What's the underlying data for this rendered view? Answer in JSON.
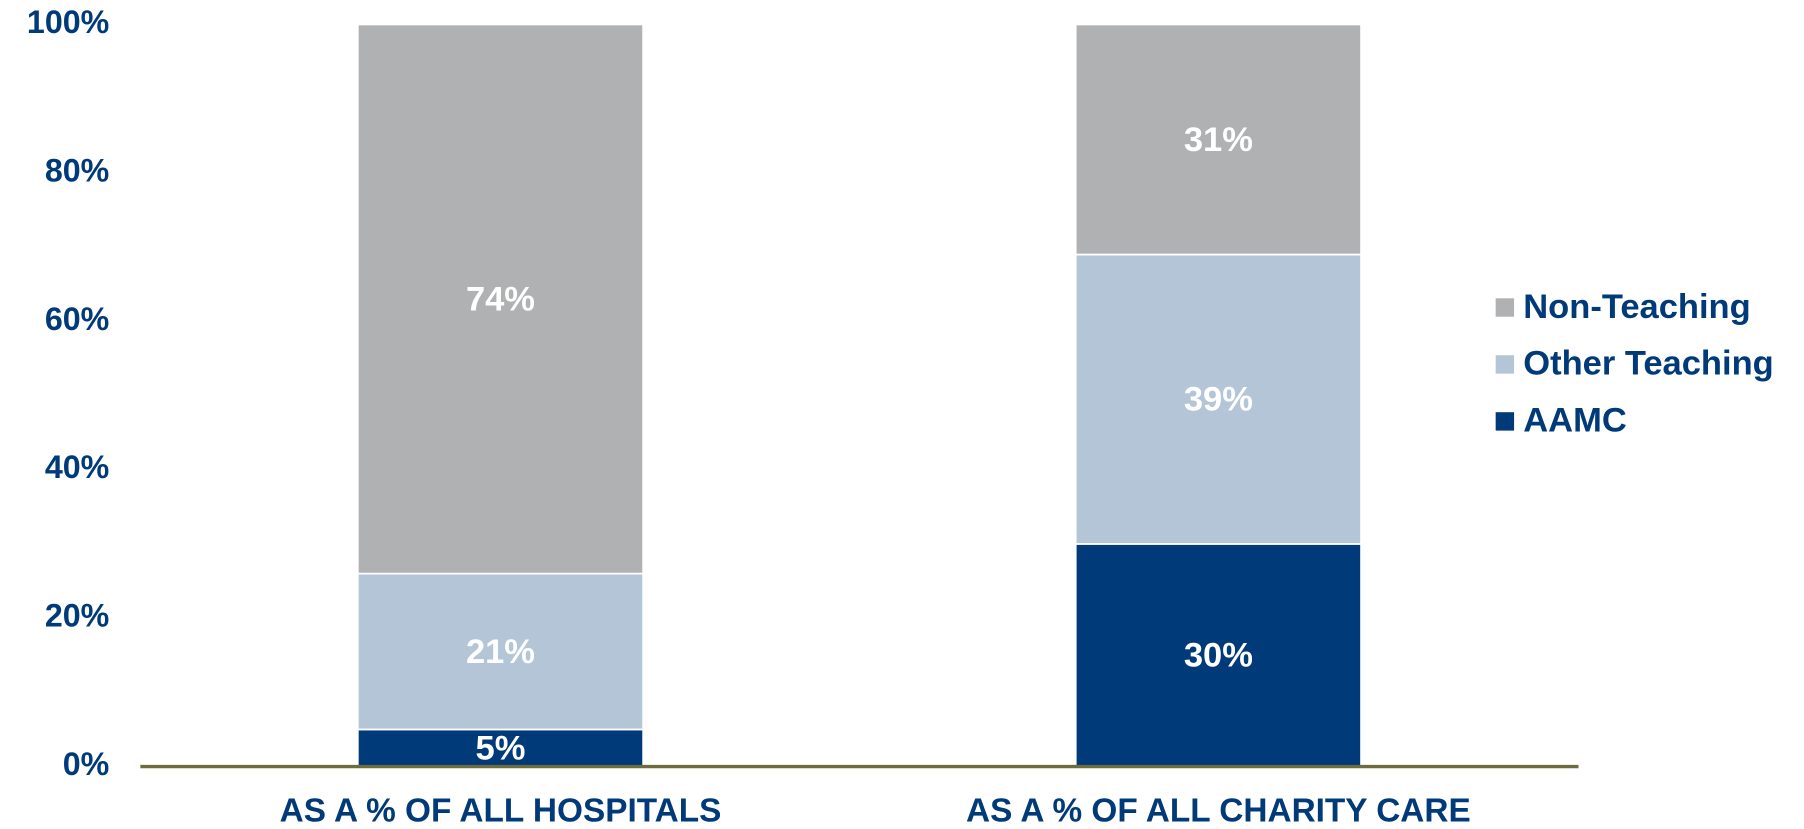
{
  "chart_data": {
    "type": "stacked_bar",
    "categories": [
      "AS A % OF ALL HOSPITALS",
      "AS A % OF ALL CHARITY CARE"
    ],
    "series": [
      {
        "name": "AAMC",
        "color": "#003a78",
        "values": [
          5,
          30
        ],
        "value_labels": [
          "5%",
          "30%"
        ]
      },
      {
        "name": "Other Teaching",
        "color": "#b4c5d8",
        "values": [
          21,
          39
        ],
        "value_labels": [
          "21%",
          "39%"
        ]
      },
      {
        "name": "Non-Teaching",
        "color": "#b0b1b3",
        "values": [
          74,
          31
        ],
        "value_labels": [
          "74%",
          "31%"
        ]
      }
    ],
    "ylim": [
      0,
      100
    ],
    "yticks": [
      {
        "value": 0,
        "label": "0%"
      },
      {
        "value": 20,
        "label": "20%"
      },
      {
        "value": 40,
        "label": "40%"
      },
      {
        "value": 60,
        "label": "60%"
      },
      {
        "value": 80,
        "label": "80%"
      },
      {
        "value": 100,
        "label": "100%"
      }
    ],
    "legend": "right",
    "grid": false
  }
}
